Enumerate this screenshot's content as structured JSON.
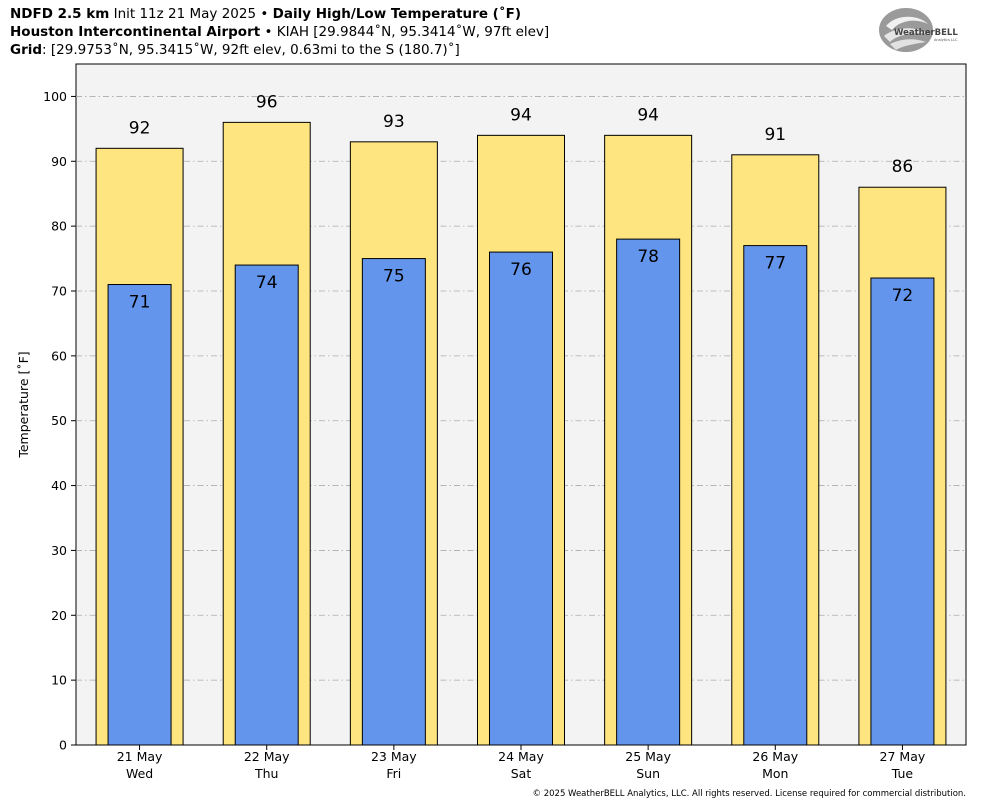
{
  "header": {
    "line1": {
      "model": "NDFD 2.5 km",
      "init": "Init 11z 21 May 2025",
      "sep": "•",
      "product": "Daily High/Low Temperature (˚F)"
    },
    "line2": {
      "station": "Houston Intercontinental Airport",
      "sep": "•",
      "details": "KIAH [29.9844˚N, 95.3414˚W, 97ft elev]"
    },
    "line3": {
      "label": "Grid",
      "details": ": [29.9753˚N, 95.3415˚W, 92ft elev, 0.63mi to the S (180.7)˚]"
    }
  },
  "logo": {
    "text_main": "WeatherBELL",
    "text_sub": "Analytics LLC",
    "icon": "weatherbell-swirl-logo"
  },
  "copyright": "© 2025 WeatherBELL Analytics, LLC. All rights reserved. License required for commercial distribution.",
  "colors": {
    "high_bar": "#FFE57F",
    "low_bar": "#6495ED",
    "plot_bg": "#F4F3F4",
    "grid": "#AAAAAA",
    "edge": "#000000"
  },
  "chart_data": {
    "type": "bar",
    "categories": [
      "21 May",
      "22 May",
      "23 May",
      "24 May",
      "25 May",
      "26 May",
      "27 May"
    ],
    "weekdays": [
      "Wed",
      "Thu",
      "Fri",
      "Sat",
      "Sun",
      "Mon",
      "Tue"
    ],
    "series": [
      {
        "name": "High",
        "values": [
          92,
          96,
          93,
          94,
          94,
          91,
          86
        ]
      },
      {
        "name": "Low",
        "values": [
          71,
          74,
          75,
          76,
          78,
          77,
          72
        ]
      }
    ],
    "title": "",
    "xlabel": "",
    "ylabel": "Temperature [˚F]",
    "ylim": [
      0,
      105
    ],
    "yticks": [
      0,
      10,
      20,
      30,
      40,
      50,
      60,
      70,
      80,
      90,
      100
    ],
    "grid": true,
    "legend": "none"
  }
}
